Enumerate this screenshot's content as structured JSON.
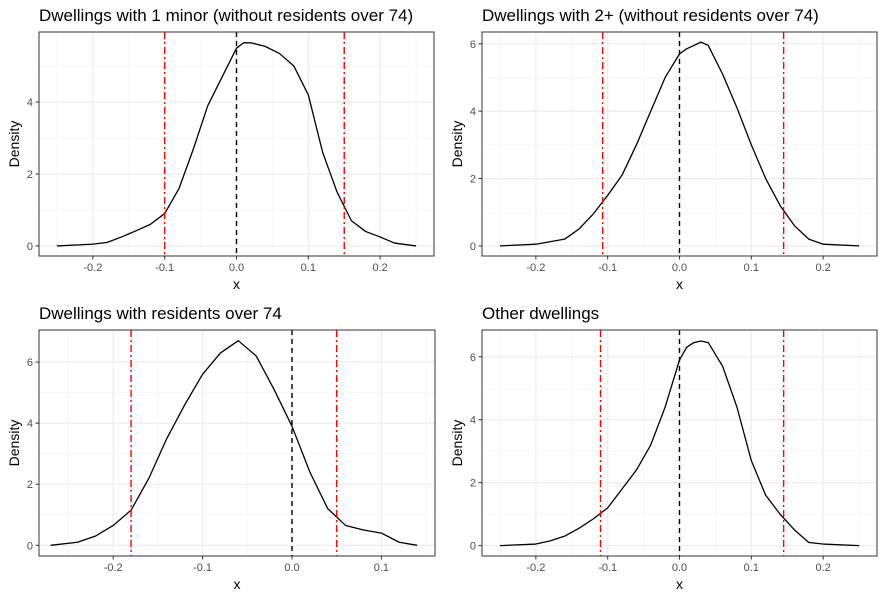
{
  "chart_data": [
    {
      "type": "line",
      "title": "Dwellings with 1 minor (without residents over 74)",
      "xlabel": "x",
      "ylabel": "Density",
      "xlim": [
        -0.275,
        0.275
      ],
      "ylim": [
        -0.28,
        5.95
      ],
      "xticks": [
        -0.2,
        -0.1,
        0.0,
        0.1,
        0.2
      ],
      "xtick_labels": [
        "-0.2",
        "-0.1",
        "0.0",
        "0.1",
        "0.2"
      ],
      "yticks": [
        0,
        2,
        4
      ],
      "ytick_labels": [
        "0",
        "2",
        "4"
      ],
      "grid": true,
      "vlines": [
        {
          "x": 0.0,
          "color": "#000000",
          "style": "dashed"
        },
        {
          "x": -0.1,
          "color": "#ff0000",
          "style": "dashdot"
        },
        {
          "x": 0.15,
          "color": "#ff0000",
          "style": "dashdot"
        }
      ],
      "series": [
        {
          "x": [
            -0.25,
            -0.22,
            -0.2,
            -0.18,
            -0.16,
            -0.14,
            -0.12,
            -0.1,
            -0.08,
            -0.06,
            -0.04,
            -0.03,
            -0.02,
            -0.01,
            0.0,
            0.01,
            0.02,
            0.04,
            0.06,
            0.08,
            0.1,
            0.12,
            0.14,
            0.15,
            0.16,
            0.18,
            0.2,
            0.22,
            0.25
          ],
          "y": [
            0.0,
            0.03,
            0.05,
            0.1,
            0.25,
            0.42,
            0.6,
            0.9,
            1.6,
            2.7,
            3.9,
            4.3,
            4.7,
            5.1,
            5.5,
            5.65,
            5.65,
            5.55,
            5.35,
            5.0,
            4.2,
            2.6,
            1.5,
            1.1,
            0.7,
            0.4,
            0.25,
            0.08,
            0.0
          ]
        }
      ]
    },
    {
      "type": "line",
      "title": "Dwellings with 2+ (without residents over 74)",
      "xlabel": "x",
      "ylabel": "Density",
      "xlim": [
        -0.275,
        0.275
      ],
      "ylim": [
        -0.3,
        6.35
      ],
      "xticks": [
        -0.2,
        -0.1,
        0.0,
        0.1,
        0.2
      ],
      "xtick_labels": [
        "-0.2",
        "-0.1",
        "0.0",
        "0.1",
        "0.2"
      ],
      "yticks": [
        0,
        2,
        4,
        6
      ],
      "ytick_labels": [
        "0",
        "2",
        "4",
        "6"
      ],
      "grid": true,
      "vlines": [
        {
          "x": 0.0,
          "color": "#000000",
          "style": "dashed"
        },
        {
          "x": -0.107,
          "color": "#ff0000",
          "style": "dashdot"
        },
        {
          "x": 0.145,
          "color": "#ff0000",
          "style": "dashdot"
        }
      ],
      "series": [
        {
          "x": [
            -0.25,
            -0.2,
            -0.16,
            -0.14,
            -0.12,
            -0.1,
            -0.08,
            -0.06,
            -0.04,
            -0.02,
            0.0,
            0.01,
            0.02,
            0.03,
            0.04,
            0.06,
            0.08,
            0.1,
            0.12,
            0.14,
            0.16,
            0.18,
            0.2,
            0.25
          ],
          "y": [
            0.0,
            0.05,
            0.2,
            0.5,
            0.95,
            1.5,
            2.1,
            3.0,
            4.0,
            5.0,
            5.7,
            5.85,
            5.95,
            6.05,
            5.95,
            5.1,
            4.1,
            3.0,
            2.0,
            1.2,
            0.6,
            0.2,
            0.05,
            0.0
          ]
        }
      ]
    },
    {
      "type": "line",
      "title": "Dwellings with residents over 74",
      "xlabel": "x",
      "ylabel": "Density",
      "xlim": [
        -0.283,
        0.16
      ],
      "ylim": [
        -0.35,
        7.05
      ],
      "xticks": [
        -0.2,
        -0.1,
        0.0,
        0.1
      ],
      "xtick_labels": [
        "-0.2",
        "-0.1",
        "0.0",
        "0.1"
      ],
      "yticks": [
        0,
        2,
        4,
        6
      ],
      "ytick_labels": [
        "0",
        "2",
        "4",
        "6"
      ],
      "grid": true,
      "vlines": [
        {
          "x": 0.0,
          "color": "#000000",
          "style": "dashed"
        },
        {
          "x": -0.18,
          "color": "#ff0000",
          "style": "dashdot"
        },
        {
          "x": 0.05,
          "color": "#ff0000",
          "style": "dashdot"
        }
      ],
      "series": [
        {
          "x": [
            -0.27,
            -0.24,
            -0.22,
            -0.2,
            -0.18,
            -0.16,
            -0.14,
            -0.12,
            -0.1,
            -0.08,
            -0.06,
            -0.04,
            -0.02,
            0.0,
            0.02,
            0.04,
            0.06,
            0.08,
            0.1,
            0.12,
            0.14
          ],
          "y": [
            0.0,
            0.1,
            0.3,
            0.65,
            1.15,
            2.2,
            3.5,
            4.6,
            5.6,
            6.3,
            6.7,
            6.2,
            5.1,
            3.9,
            2.4,
            1.2,
            0.65,
            0.5,
            0.4,
            0.1,
            0.0
          ]
        }
      ]
    },
    {
      "type": "line",
      "title": "Other dwellings",
      "xlabel": "x",
      "ylabel": "Density",
      "xlim": [
        -0.275,
        0.275
      ],
      "ylim": [
        -0.33,
        6.85
      ],
      "xticks": [
        -0.2,
        -0.1,
        0.0,
        0.1,
        0.2
      ],
      "xtick_labels": [
        "-0.2",
        "-0.1",
        "0.0",
        "0.1",
        "0.2"
      ],
      "yticks": [
        0,
        2,
        4,
        6
      ],
      "ytick_labels": [
        "0",
        "2",
        "4",
        "6"
      ],
      "grid": true,
      "vlines": [
        {
          "x": 0.0,
          "color": "#000000",
          "style": "dashed"
        },
        {
          "x": -0.11,
          "color": "#ff0000",
          "style": "dashdot"
        },
        {
          "x": 0.145,
          "color": "#ff0000",
          "style": "dashdot"
        }
      ],
      "series": [
        {
          "x": [
            -0.25,
            -0.2,
            -0.18,
            -0.16,
            -0.14,
            -0.12,
            -0.1,
            -0.08,
            -0.06,
            -0.04,
            -0.02,
            0.0,
            0.01,
            0.02,
            0.03,
            0.04,
            0.06,
            0.08,
            0.1,
            0.12,
            0.14,
            0.16,
            0.18,
            0.2,
            0.25
          ],
          "y": [
            0.0,
            0.05,
            0.15,
            0.3,
            0.55,
            0.85,
            1.2,
            1.8,
            2.4,
            3.2,
            4.4,
            5.9,
            6.3,
            6.45,
            6.5,
            6.45,
            5.7,
            4.4,
            2.7,
            1.6,
            1.0,
            0.5,
            0.1,
            0.05,
            0.0
          ]
        }
      ]
    }
  ]
}
